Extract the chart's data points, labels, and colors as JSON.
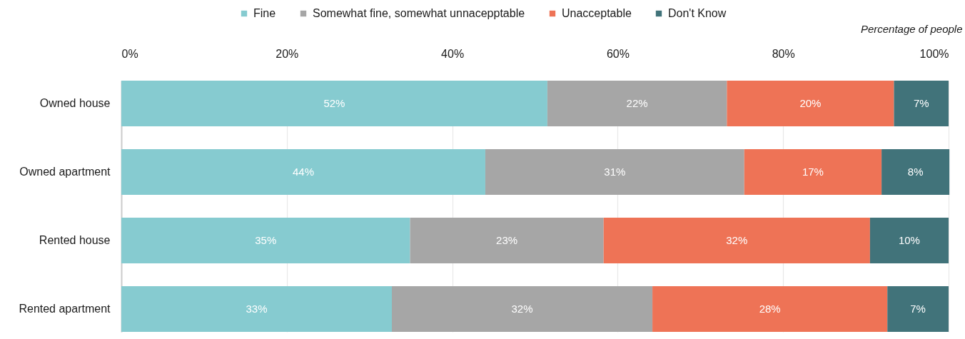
{
  "chart_data": {
    "type": "bar",
    "orientation": "horizontal",
    "stacked": true,
    "xlabel": "Percentage of people",
    "categories": [
      "Owned house",
      "Owned apartment",
      "Rented house",
      "Rented apartment"
    ],
    "series": [
      {
        "name": "Fine",
        "color": "#86cbd0",
        "values": [
          51.5,
          44.0,
          34.9,
          32.7
        ],
        "value_labels": [
          "52%",
          "44%",
          "35%",
          "33%"
        ]
      },
      {
        "name": "Somewhat fine, somewhat unnacepptable",
        "color": "#a6a6a6",
        "values": [
          21.7,
          31.3,
          23.4,
          31.5
        ],
        "value_labels": [
          "22%",
          "31%",
          "23%",
          "32%"
        ]
      },
      {
        "name": "Unacceptable",
        "color": "#ee7356",
        "values": [
          20.2,
          16.6,
          32.2,
          28.4
        ],
        "value_labels": [
          "20%",
          "17%",
          "32%",
          "28%"
        ]
      },
      {
        "name": "Don't Know",
        "color": "#41737a",
        "values": [
          6.6,
          8.2,
          9.5,
          7.4
        ],
        "value_labels": [
          "7%",
          "8%",
          "10%",
          "7%"
        ]
      }
    ],
    "xlim": [
      0,
      100
    ],
    "xticks": [
      {
        "value": 0,
        "label": "0%"
      },
      {
        "value": 20,
        "label": "20%"
      },
      {
        "value": 40,
        "label": "40%"
      },
      {
        "value": 60,
        "label": "60%"
      },
      {
        "value": 80,
        "label": "80%"
      },
      {
        "value": 100,
        "label": "100%"
      }
    ],
    "grid": "x",
    "legend": "top"
  }
}
